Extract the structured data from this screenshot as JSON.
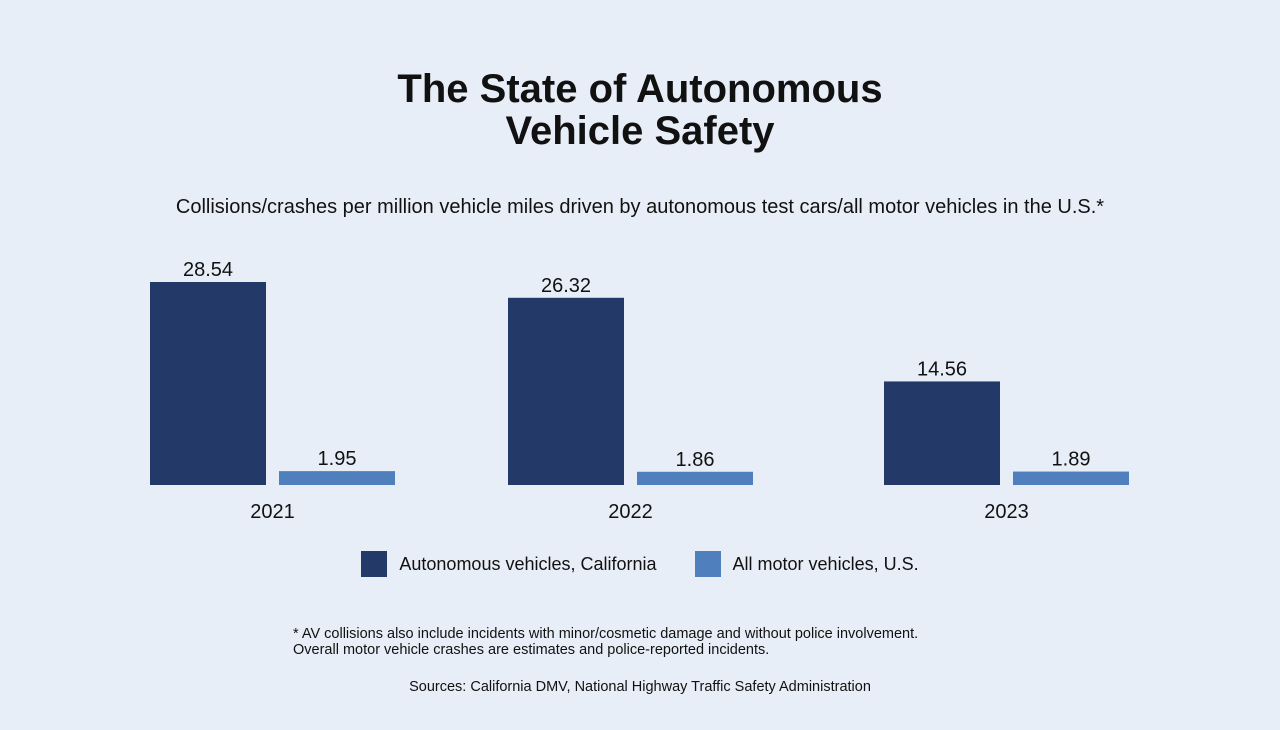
{
  "title_line1": "The State of Autonomous",
  "title_line2": "Vehicle Safety",
  "subtitle": "Collisions/crashes per million vehicle miles driven by autonomous test cars/all motor vehicles in the U.S.*",
  "footnote_line1": "* AV collisions also include incidents with minor/cosmetic damage and without police involvement.",
  "footnote_line2": "Overall motor vehicle crashes are estimates and police-reported incidents.",
  "sources": "Sources: California DMV, National Highway Traffic Safety Administration",
  "colors": {
    "background": "#e8eef7",
    "autonomous": "#233a68",
    "all_vehicles": "#4f7fbd"
  },
  "chart_data": {
    "type": "bar",
    "title": "The State of Autonomous Vehicle Safety",
    "subtitle": "Collisions/crashes per million vehicle miles driven by autonomous test cars/all motor vehicles in the U.S.*",
    "categories": [
      "2021",
      "2022",
      "2023"
    ],
    "series": [
      {
        "name": "Autonomous vehicles, California",
        "values": [
          28.54,
          26.32,
          14.56
        ],
        "labels": [
          "28.54",
          "26.32",
          "14.56"
        ],
        "color": "#233a68"
      },
      {
        "name": "All motor vehicles, U.S.",
        "values": [
          1.95,
          1.86,
          1.89
        ],
        "labels": [
          "1.95",
          "1.86",
          "1.89"
        ],
        "color": "#4f7fbd"
      }
    ],
    "xlabel": "",
    "ylabel": "",
    "ylim": [
      0,
      30
    ],
    "grid": false,
    "y_axis_shown": false,
    "data_labels": true,
    "legend": "bottom"
  }
}
